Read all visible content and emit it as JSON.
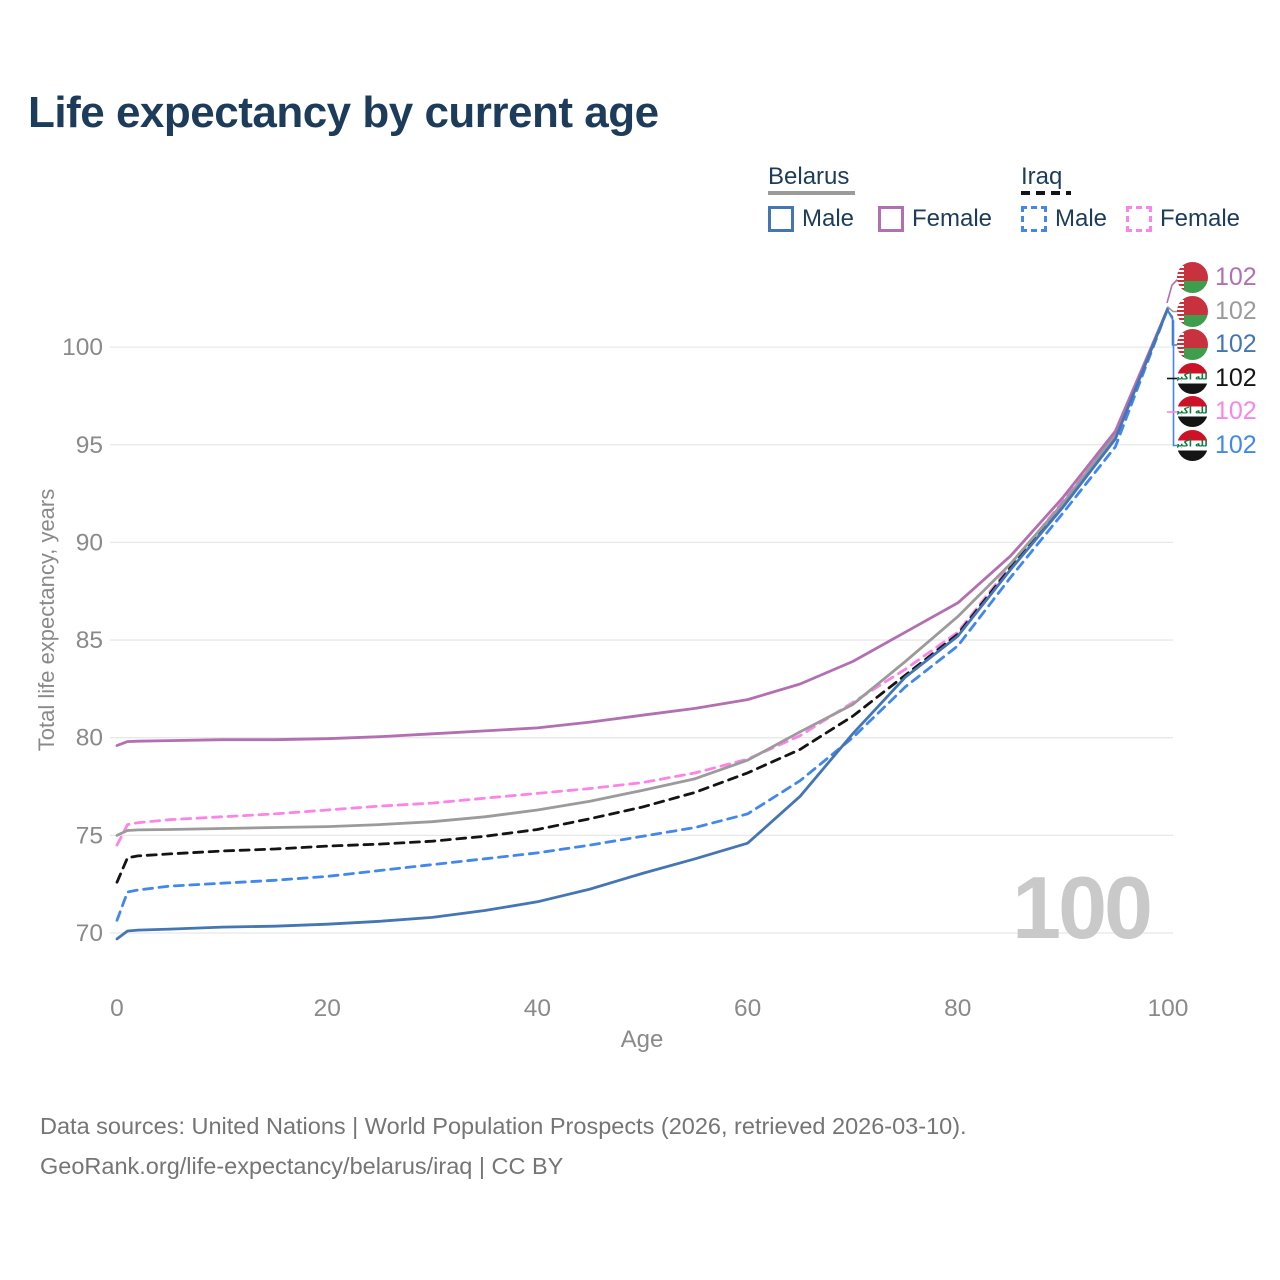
{
  "title": "Life expectancy by current age",
  "legend": {
    "belarus": {
      "label": "Belarus",
      "male": "Male",
      "female": "Female"
    },
    "iraq": {
      "label": "Iraq",
      "male": "Male",
      "female": "Female"
    }
  },
  "colors": {
    "belarus_male": "#4576b4",
    "belarus_female": "#b26fb2",
    "belarus_all": "#9b9b9b",
    "iraq_male": "#4287ee",
    "iraq_female": "#fb84e6",
    "iraq_all": "#141414",
    "grid": "#e8e8e8",
    "axis_text": "#8a8a8a",
    "title_text": "#1d3c5c",
    "watermark": "#c9c9c9",
    "footer_text": "#757575"
  },
  "watermark": "100",
  "chart_data": {
    "type": "line",
    "title": "Life expectancy by current age",
    "xlabel": "Age",
    "ylabel": "Total life expectancy, years",
    "xlim": [
      0,
      100
    ],
    "ylim": [
      68.5,
      103
    ],
    "x_ticks": [
      0,
      20,
      40,
      60,
      80,
      100
    ],
    "y_ticks": [
      70,
      75,
      80,
      85,
      90,
      95,
      100
    ],
    "grid": "horizontal-only",
    "legend_position": "top-right",
    "x": [
      0,
      1,
      2,
      5,
      10,
      15,
      20,
      25,
      30,
      35,
      40,
      45,
      50,
      55,
      60,
      65,
      70,
      75,
      80,
      85,
      90,
      95,
      100
    ],
    "series": [
      {
        "name": "Iraq Female",
        "color_key": "iraq_female",
        "dashed": true,
        "values": [
          74.5,
          75.55,
          75.65,
          75.8,
          75.95,
          76.1,
          76.3,
          76.5,
          76.65,
          76.9,
          77.15,
          77.4,
          77.7,
          78.2,
          78.9,
          80.1,
          81.8,
          83.5,
          85.4,
          88.8,
          92.1,
          95.5,
          102
        ]
      },
      {
        "name": "Iraq",
        "color_key": "iraq_all",
        "dashed": true,
        "values": [
          72.6,
          73.85,
          73.95,
          74.05,
          74.2,
          74.3,
          74.45,
          74.55,
          74.7,
          74.95,
          75.3,
          75.85,
          76.45,
          77.2,
          78.2,
          79.4,
          81.1,
          83.2,
          85.3,
          88.7,
          92.0,
          95.4,
          102
        ]
      },
      {
        "name": "Iraq Male",
        "color_key": "iraq_male",
        "dashed": true,
        "values": [
          70.65,
          72.1,
          72.2,
          72.4,
          72.55,
          72.7,
          72.9,
          73.2,
          73.5,
          73.8,
          74.1,
          74.5,
          74.95,
          75.4,
          76.1,
          77.8,
          80.0,
          82.6,
          84.7,
          88.2,
          91.5,
          94.9,
          102
        ]
      },
      {
        "name": "Belarus",
        "color_key": "belarus_all",
        "dashed": false,
        "values": [
          75.0,
          75.25,
          75.28,
          75.3,
          75.35,
          75.4,
          75.45,
          75.55,
          75.7,
          75.95,
          76.3,
          76.75,
          77.3,
          77.9,
          78.85,
          80.3,
          81.7,
          83.9,
          86.2,
          88.9,
          92.0,
          95.5,
          102
        ]
      },
      {
        "name": "Belarus Female",
        "color_key": "belarus_female",
        "dashed": false,
        "values": [
          79.6,
          79.8,
          79.82,
          79.85,
          79.9,
          79.9,
          79.95,
          80.05,
          80.2,
          80.35,
          80.5,
          80.8,
          81.15,
          81.5,
          81.95,
          82.75,
          83.9,
          85.4,
          86.9,
          89.3,
          92.3,
          95.7,
          102
        ]
      },
      {
        "name": "Belarus Male",
        "color_key": "belarus_male",
        "dashed": false,
        "values": [
          69.7,
          70.1,
          70.15,
          70.2,
          70.3,
          70.35,
          70.45,
          70.6,
          70.8,
          71.15,
          71.6,
          72.25,
          73.05,
          73.8,
          74.6,
          77.0,
          80.2,
          83.1,
          85.2,
          88.6,
          91.8,
          95.3,
          102
        ]
      }
    ]
  },
  "end_labels": [
    {
      "flag": "belarus",
      "color_key": "belarus_female",
      "value": "102"
    },
    {
      "flag": "belarus",
      "color_key": "belarus_all",
      "value": "102"
    },
    {
      "flag": "belarus",
      "color_key": "belarus_male",
      "value": "102"
    },
    {
      "flag": "iraq",
      "color_key": "iraq_all",
      "value": "102"
    },
    {
      "flag": "iraq",
      "color_key": "iraq_female",
      "value": "102"
    },
    {
      "flag": "iraq",
      "color_key": "iraq_male",
      "value": "102"
    }
  ],
  "flags": {
    "iraq_script": "الله أكبر"
  },
  "footer": {
    "line1": "Data sources: United Nations | World Population Prospects (2026, retrieved 2026-03-10).",
    "line2": "GeoRank.org/life-expectancy/belarus/iraq | CC BY"
  }
}
